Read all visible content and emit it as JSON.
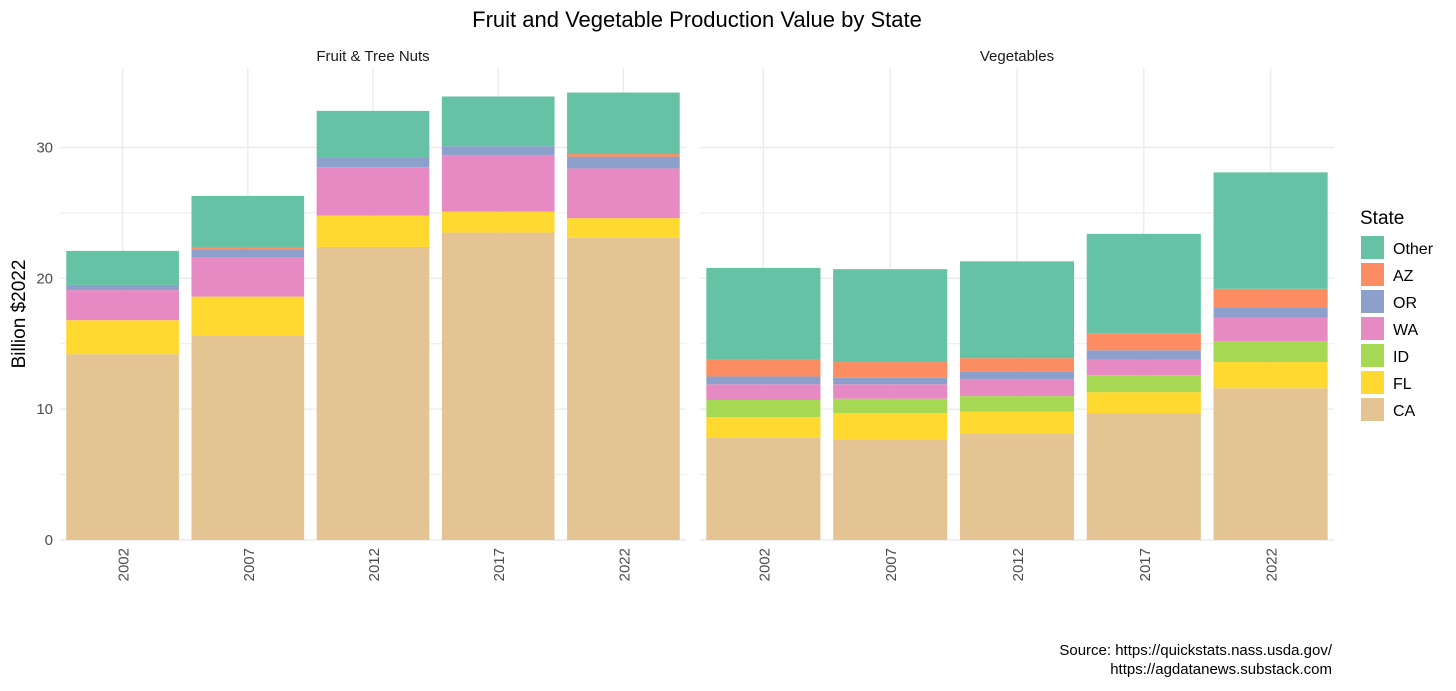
{
  "chart_data": {
    "type": "bar",
    "stacked": true,
    "title": "Fruit and Vegetable Production Value by State",
    "ylabel": "Billion $2022",
    "xlabel": "",
    "ylim": [
      0,
      35
    ],
    "yticks": [
      0,
      10,
      20,
      30
    ],
    "categories": [
      "2002",
      "2007",
      "2012",
      "2017",
      "2022"
    ],
    "legend": {
      "title": "State",
      "position": "right",
      "order": [
        "Other",
        "AZ",
        "OR",
        "WA",
        "ID",
        "FL",
        "CA"
      ]
    },
    "colors": {
      "CA": "#e5c494",
      "FL": "#ffd92f",
      "ID": "#a6d854",
      "WA": "#e78ac3",
      "OR": "#8da0cb",
      "AZ": "#fc8d62",
      "Other": "#66c2a5"
    },
    "grid_color": "#ebebeb",
    "panels": [
      {
        "title": "Fruit & Tree Nuts",
        "series": [
          {
            "name": "CA",
            "values": [
              14.2,
              15.6,
              22.4,
              23.5,
              23.1
            ]
          },
          {
            "name": "FL",
            "values": [
              2.6,
              3.0,
              2.4,
              1.6,
              1.5
            ]
          },
          {
            "name": "ID",
            "values": [
              0.0,
              0.0,
              0.0,
              0.0,
              0.0
            ]
          },
          {
            "name": "WA",
            "values": [
              2.3,
              3.0,
              3.7,
              4.3,
              3.8
            ]
          },
          {
            "name": "OR",
            "values": [
              0.4,
              0.6,
              0.7,
              0.7,
              0.9
            ]
          },
          {
            "name": "AZ",
            "values": [
              0.0,
              0.2,
              0.0,
              0.0,
              0.2
            ]
          },
          {
            "name": "Other",
            "values": [
              2.6,
              3.9,
              3.6,
              3.8,
              4.7
            ]
          }
        ]
      },
      {
        "title": "Vegetables",
        "series": [
          {
            "name": "CA",
            "values": [
              7.8,
              7.7,
              8.1,
              9.7,
              11.6
            ]
          },
          {
            "name": "FL",
            "values": [
              1.6,
              2.0,
              1.7,
              1.6,
              2.0
            ]
          },
          {
            "name": "ID",
            "values": [
              1.3,
              1.1,
              1.2,
              1.3,
              1.6
            ]
          },
          {
            "name": "WA",
            "values": [
              1.2,
              1.1,
              1.3,
              1.2,
              1.8
            ]
          },
          {
            "name": "OR",
            "values": [
              0.6,
              0.5,
              0.6,
              0.7,
              0.8
            ]
          },
          {
            "name": "AZ",
            "values": [
              1.3,
              1.2,
              1.0,
              1.3,
              1.4
            ]
          },
          {
            "name": "Other",
            "values": [
              7.0,
              7.1,
              7.4,
              7.6,
              8.9
            ]
          }
        ]
      }
    ]
  },
  "caption": {
    "line1": "Source: https://quickstats.nass.usda.gov/",
    "line2": "https://agdatanews.substack.com"
  }
}
